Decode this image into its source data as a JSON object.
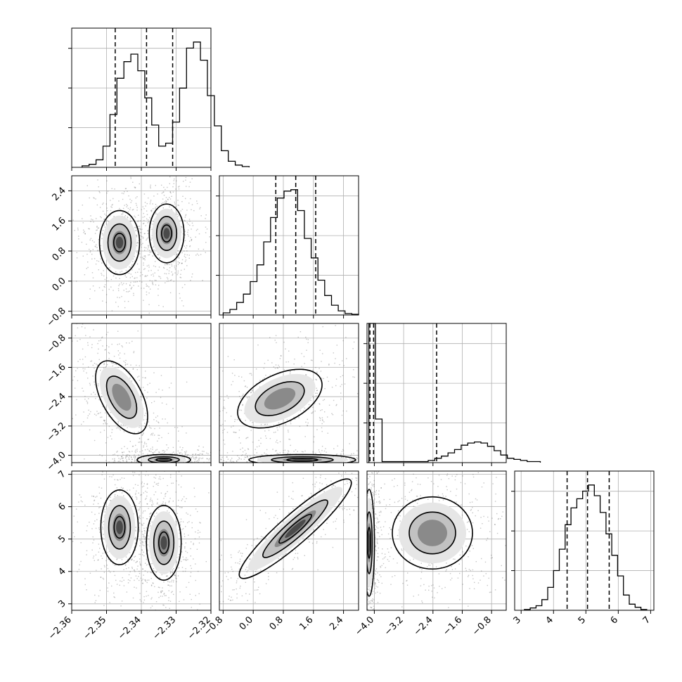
{
  "chart_data": {
    "type": "corner",
    "title": "",
    "parameters": [
      {
        "index": 0,
        "range": [
          -2.36,
          -2.32
        ],
        "ticks": [
          -2.36,
          -2.35,
          -2.34,
          -2.33,
          -2.32
        ],
        "tick_labels": [
          "−2.36",
          "−2.35",
          "−2.34",
          "−2.33",
          "−2.32"
        ]
      },
      {
        "index": 1,
        "range": [
          -0.9,
          2.8
        ],
        "ticks": [
          -0.8,
          0.0,
          0.8,
          1.6,
          2.4
        ],
        "tick_labels": [
          "−0.8",
          "0.0",
          "0.8",
          "1.6",
          "2.4"
        ]
      },
      {
        "index": 2,
        "range": [
          -4.2,
          -0.4
        ],
        "ticks": [
          -4.0,
          -3.2,
          -2.4,
          -1.6,
          -0.8
        ],
        "tick_labels": [
          "−4.0",
          "−3.2",
          "−2.4",
          "−1.6",
          "−0.8"
        ]
      },
      {
        "index": 3,
        "range": [
          2.8,
          7.1
        ],
        "ticks": [
          3,
          4,
          5,
          6,
          7
        ],
        "tick_labels": [
          "3",
          "4",
          "5",
          "6",
          "7"
        ]
      }
    ],
    "quantiles": [
      [
        -2.3475,
        -2.3385,
        -2.331
      ],
      [
        0.6,
        1.13,
        1.66
      ],
      [
        -4.12,
        -4.02,
        -2.3
      ],
      [
        4.42,
        5.05,
        5.72
      ]
    ],
    "histograms": [
      {
        "edges_start": -2.357,
        "bin_width": 0.002,
        "counts": [
          2,
          4,
          10,
          28,
          70,
          118,
          140,
          150,
          128,
          92,
          56,
          28,
          32,
          60,
          105,
          158,
          166,
          142,
          95,
          55,
          22,
          8,
          3,
          1
        ]
      },
      {
        "edges_start": -0.8,
        "bin_width": 0.18,
        "counts": [
          3,
          8,
          18,
          30,
          48,
          72,
          105,
          140,
          168,
          178,
          180,
          150,
          110,
          82,
          50,
          28,
          14,
          6,
          2,
          1
        ]
      },
      {
        "edges_start": -4.15,
        "bin_width": 0.18,
        "counts": [
          230,
          40,
          1,
          1,
          1,
          1,
          1,
          1,
          1,
          2,
          4,
          6,
          9,
          12,
          16,
          18,
          19,
          18,
          15,
          11,
          7,
          4,
          3,
          2,
          1,
          1
        ]
      },
      {
        "edges_start": 3.1,
        "bin_width": 0.18,
        "counts": [
          1,
          3,
          6,
          14,
          30,
          52,
          80,
          112,
          134,
          146,
          156,
          164,
          150,
          128,
          100,
          72,
          45,
          20,
          8,
          4,
          1
        ]
      }
    ],
    "grid": true,
    "xlabel": "",
    "ylabel": ""
  }
}
